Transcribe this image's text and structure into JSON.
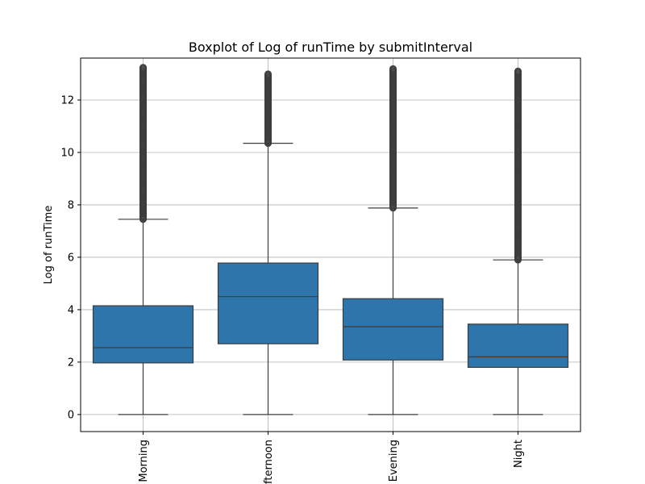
{
  "chart_data": {
    "type": "boxplot",
    "title": "Boxplot of Log of runTime by submitInterval",
    "xlabel": "",
    "ylabel": "Log of runTime",
    "ylim": [
      -0.65,
      13.6
    ],
    "yticks": [
      0,
      2,
      4,
      6,
      8,
      10,
      12
    ],
    "grid": true,
    "color": "#2e75ab",
    "line_color": "#3d3d3d",
    "categories": [
      "Morning",
      "Afternoon",
      "Evening",
      "Night"
    ],
    "boxes": [
      {
        "category": "Morning",
        "whisker_low": 0,
        "q1": 1.97,
        "median": 2.55,
        "q3": 4.15,
        "whisker_high": 7.45,
        "outlier_range": [
          7.45,
          13.25
        ]
      },
      {
        "category": "Afternoon",
        "whisker_low": 0,
        "q1": 2.7,
        "median": 4.5,
        "q3": 5.78,
        "whisker_high": 10.35,
        "outlier_range": [
          10.35,
          13.0
        ]
      },
      {
        "category": "Evening",
        "whisker_low": 0,
        "q1": 2.08,
        "median": 3.35,
        "q3": 4.42,
        "whisker_high": 7.88,
        "outlier_range": [
          7.88,
          13.2
        ]
      },
      {
        "category": "Night",
        "whisker_low": 0,
        "q1": 1.8,
        "median": 2.2,
        "q3": 3.45,
        "whisker_high": 5.9,
        "outlier_range": [
          5.9,
          13.1
        ]
      }
    ]
  }
}
